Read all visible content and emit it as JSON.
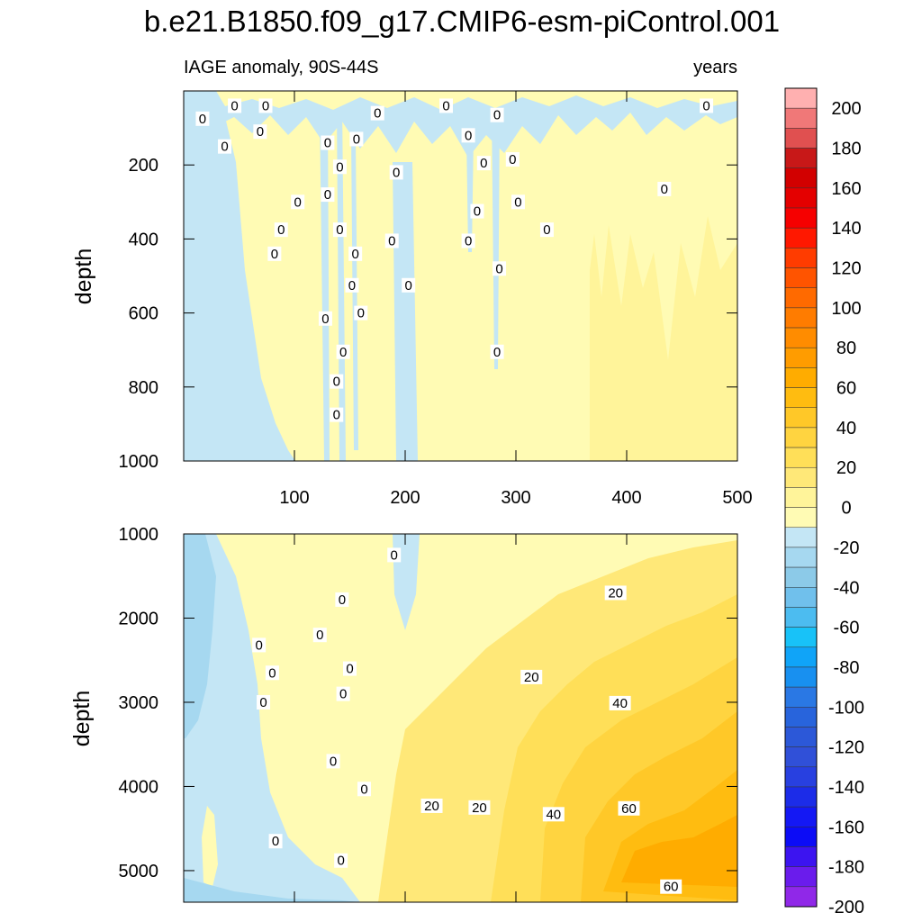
{
  "chart_data": {
    "type": "contour",
    "title": "b.e21.B1850.f09_g17.CMIP6-esm-piControl.001",
    "subtitle_left": "IAGE anomaly, 90S-44S",
    "subtitle_right": "years",
    "xlabel": "",
    "ylabel": "depth",
    "xlim": [
      0,
      500
    ],
    "x_ticks": [
      100,
      200,
      300,
      400,
      500
    ],
    "panels": [
      {
        "name": "upper",
        "ylim": [
          1000,
          0
        ],
        "y_ticks": [
          200,
          400,
          600,
          800,
          1000
        ],
        "contour_labels": [
          {
            "text": "0",
            "x": 17,
            "y": 75
          },
          {
            "text": "0",
            "x": 46,
            "y": 40
          },
          {
            "text": "0",
            "x": 74,
            "y": 40
          },
          {
            "text": "0",
            "x": 69,
            "y": 110
          },
          {
            "text": "0",
            "x": 37,
            "y": 150
          },
          {
            "text": "0",
            "x": 175,
            "y": 60
          },
          {
            "text": "0",
            "x": 237,
            "y": 40
          },
          {
            "text": "0",
            "x": 283,
            "y": 65
          },
          {
            "text": "0",
            "x": 472,
            "y": 40
          },
          {
            "text": "0",
            "x": 130,
            "y": 140
          },
          {
            "text": "0",
            "x": 156,
            "y": 130
          },
          {
            "text": "0",
            "x": 141,
            "y": 205
          },
          {
            "text": "0",
            "x": 192,
            "y": 220
          },
          {
            "text": "0",
            "x": 257,
            "y": 120
          },
          {
            "text": "0",
            "x": 271,
            "y": 195
          },
          {
            "text": "0",
            "x": 297,
            "y": 185
          },
          {
            "text": "0",
            "x": 130,
            "y": 280
          },
          {
            "text": "0",
            "x": 103,
            "y": 300
          },
          {
            "text": "0",
            "x": 302,
            "y": 300
          },
          {
            "text": "0",
            "x": 434,
            "y": 265
          },
          {
            "text": "0",
            "x": 88,
            "y": 375
          },
          {
            "text": "0",
            "x": 141,
            "y": 375
          },
          {
            "text": "0",
            "x": 265,
            "y": 325
          },
          {
            "text": "0",
            "x": 328,
            "y": 375
          },
          {
            "text": "0",
            "x": 82,
            "y": 440
          },
          {
            "text": "0",
            "x": 188,
            "y": 405
          },
          {
            "text": "0",
            "x": 257,
            "y": 405
          },
          {
            "text": "0",
            "x": 155,
            "y": 440
          },
          {
            "text": "0",
            "x": 285,
            "y": 480
          },
          {
            "text": "0",
            "x": 152,
            "y": 525
          },
          {
            "text": "0",
            "x": 203,
            "y": 525
          },
          {
            "text": "0",
            "x": 128,
            "y": 615
          },
          {
            "text": "0",
            "x": 160,
            "y": 600
          },
          {
            "text": "0",
            "x": 144,
            "y": 705
          },
          {
            "text": "0",
            "x": 283,
            "y": 705
          },
          {
            "text": "0",
            "x": 138,
            "y": 785
          },
          {
            "text": "0",
            "x": 138,
            "y": 875
          }
        ]
      },
      {
        "name": "lower",
        "ylim": [
          5375,
          1000
        ],
        "y_ticks": [
          1000,
          2000,
          3000,
          4000,
          5000
        ],
        "contour_labels": [
          {
            "text": "0",
            "x": 190,
            "y": 1250
          },
          {
            "text": "0",
            "x": 143,
            "y": 1780
          },
          {
            "text": "0",
            "x": 123,
            "y": 2200
          },
          {
            "text": "0",
            "x": 68,
            "y": 2320
          },
          {
            "text": "0",
            "x": 80,
            "y": 2650
          },
          {
            "text": "0",
            "x": 150,
            "y": 2600
          },
          {
            "text": "0",
            "x": 144,
            "y": 2900
          },
          {
            "text": "0",
            "x": 72,
            "y": 3000
          },
          {
            "text": "0",
            "x": 135,
            "y": 3700
          },
          {
            "text": "0",
            "x": 163,
            "y": 4030
          },
          {
            "text": "0",
            "x": 83,
            "y": 4650
          },
          {
            "text": "0",
            "x": 142,
            "y": 4880
          },
          {
            "text": "20",
            "x": 390,
            "y": 1700
          },
          {
            "text": "20",
            "x": 314,
            "y": 2700
          },
          {
            "text": "20",
            "x": 224,
            "y": 4230
          },
          {
            "text": "20",
            "x": 267,
            "y": 4250
          },
          {
            "text": "40",
            "x": 394,
            "y": 3010
          },
          {
            "text": "40",
            "x": 334,
            "y": 4330
          },
          {
            "text": "60",
            "x": 402,
            "y": 4260
          },
          {
            "text": "60",
            "x": 440,
            "y": 5190
          }
        ]
      }
    ],
    "colorbar": {
      "labels": [
        "200",
        "180",
        "160",
        "140",
        "120",
        "100",
        "80",
        "60",
        "40",
        "20",
        "0",
        "-20",
        "-40",
        "-60",
        "-80",
        "-100",
        "-120",
        "-140",
        "-160",
        "-180",
        "-200"
      ],
      "colors": [
        "#ffb0b0",
        "#f07878",
        "#e05050",
        "#c81818",
        "#d20000",
        "#e40000",
        "#f60000",
        "#ff1800",
        "#ff3c00",
        "#ff5400",
        "#ff6a00",
        "#ff7c00",
        "#ff8c00",
        "#ff9c00",
        "#ffac00",
        "#ffbc10",
        "#ffc828",
        "#ffd440",
        "#ffdf58",
        "#ffe878",
        "#fff49a",
        "#fffbb4",
        "#c4e6f5",
        "#a6d8f0",
        "#8ccae8",
        "#70c0ec",
        "#4cbcf0",
        "#18c2f8",
        "#10a4f8",
        "#1890f0",
        "#2a78e4",
        "#2864dc",
        "#2c58d8",
        "#3050d8",
        "#2840e0",
        "#1c2ce8",
        "#1418f4",
        "#0c0cf6",
        "#3c14f0",
        "#6a1cec",
        "#9028e8"
      ]
    }
  }
}
